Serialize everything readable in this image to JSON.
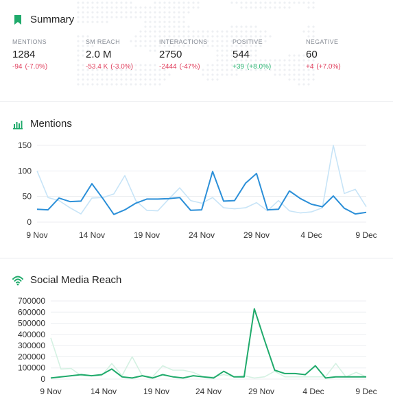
{
  "summary": {
    "title": "Summary",
    "icon": "bookmark-icon",
    "stats": [
      {
        "label": "MENTIONS",
        "value": "1284",
        "delta": "-94",
        "delta_pct": "(-7.0%)",
        "trend": "negative"
      },
      {
        "label": "SM REACH",
        "value": "2.0 M",
        "delta": "-53.4 K",
        "delta_pct": "(-3.0%)",
        "trend": "negative"
      },
      {
        "label": "INTERACTIONS",
        "value": "2750",
        "delta": "-2444",
        "delta_pct": "(-47%)",
        "trend": "negative"
      },
      {
        "label": "POSITIVE",
        "value": "544",
        "delta": "+39",
        "delta_pct": "(+8.0%)",
        "trend": "positive"
      },
      {
        "label": "NEGATIVE",
        "value": "60",
        "delta": "+4",
        "delta_pct": "(+7.0%)",
        "trend": "negative"
      }
    ]
  },
  "colors": {
    "accent_green": "#1faa6b",
    "mentions_current": "#2b8fd8",
    "mentions_previous": "#c7e4f7",
    "reach_current": "#1faa6b",
    "reach_previous": "#d4f1e2",
    "negative": "#e0405e",
    "positive": "#2bb673"
  },
  "chart_data": [
    {
      "type": "line",
      "title": "Mentions",
      "icon": "bar-chart-icon",
      "x_tick_labels": [
        "9 Nov",
        "14 Nov",
        "19 Nov",
        "24 Nov",
        "29 Nov",
        "4 Dec",
        "9 Dec"
      ],
      "ylim": [
        0,
        150
      ],
      "y_ticks": [
        0,
        50,
        100,
        150
      ],
      "y_tick_labels": [
        "0",
        "50",
        "100",
        "150"
      ],
      "grid": true,
      "series": [
        {
          "role": "previous",
          "values": [
            100,
            48,
            42,
            28,
            16,
            47,
            48,
            55,
            91,
            42,
            23,
            22,
            45,
            67,
            42,
            37,
            48,
            28,
            26,
            28,
            38,
            22,
            42,
            22,
            18,
            20,
            28,
            150,
            56,
            64,
            30
          ]
        },
        {
          "role": "current",
          "values": [
            25,
            24,
            47,
            40,
            41,
            75,
            46,
            15,
            24,
            37,
            45,
            45,
            46,
            48,
            23,
            24,
            99,
            41,
            42,
            76,
            95,
            24,
            25,
            61,
            46,
            35,
            30,
            51,
            27,
            16,
            19
          ]
        }
      ]
    },
    {
      "type": "line",
      "title": "Social Media Reach",
      "icon": "wifi-icon",
      "x_tick_labels": [
        "9 Nov",
        "14 Nov",
        "19 Nov",
        "24 Nov",
        "29 Nov",
        "4 Dec",
        "9 Dec"
      ],
      "ylim": [
        0,
        700000
      ],
      "y_ticks": [
        0,
        100000,
        200000,
        300000,
        400000,
        500000,
        600000,
        700000
      ],
      "y_tick_labels": [
        "0",
        "100000",
        "200000",
        "300000",
        "400000",
        "500000",
        "600000",
        "700000"
      ],
      "grid": true,
      "series": [
        {
          "role": "previous",
          "values": [
            370000,
            90000,
            95000,
            30000,
            30000,
            30000,
            140000,
            30000,
            200000,
            30000,
            20000,
            120000,
            80000,
            80000,
            60000,
            20000,
            20000,
            40000,
            20000,
            30000,
            10000,
            20000,
            70000,
            20000,
            20000,
            20000,
            20000,
            20000,
            140000,
            20000,
            60000,
            20000
          ]
        },
        {
          "role": "current",
          "values": [
            10000,
            20000,
            30000,
            40000,
            30000,
            40000,
            90000,
            20000,
            10000,
            30000,
            10000,
            40000,
            20000,
            10000,
            30000,
            20000,
            10000,
            70000,
            20000,
            20000,
            630000,
            350000,
            80000,
            50000,
            50000,
            40000,
            120000,
            10000,
            20000,
            20000,
            20000,
            20000
          ]
        }
      ]
    }
  ]
}
